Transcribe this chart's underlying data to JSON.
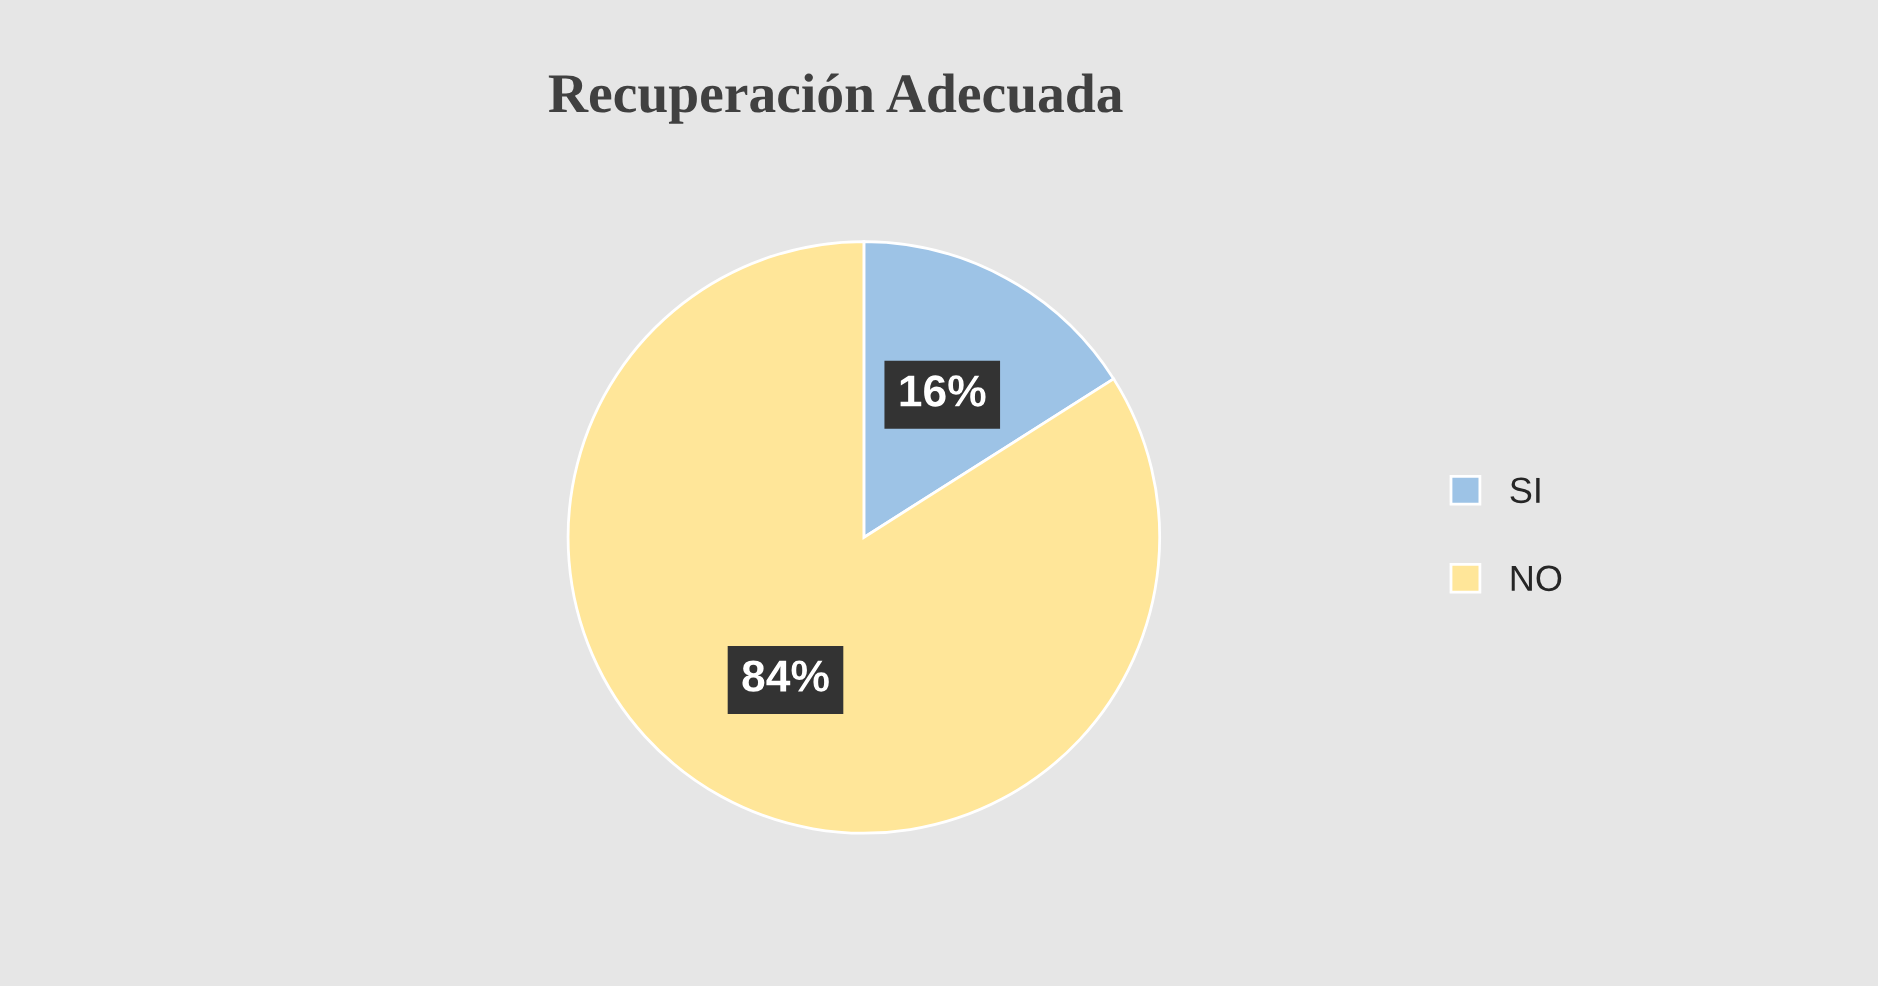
{
  "chart_data": {
    "type": "pie",
    "title": "Recuperación Adecuada",
    "categories": [
      "SI",
      "NO"
    ],
    "values": [
      16,
      84
    ],
    "colors": [
      "#9dc3e6",
      "#ffe699"
    ],
    "value_labels": [
      "16%",
      "84%"
    ],
    "legend": "right"
  }
}
